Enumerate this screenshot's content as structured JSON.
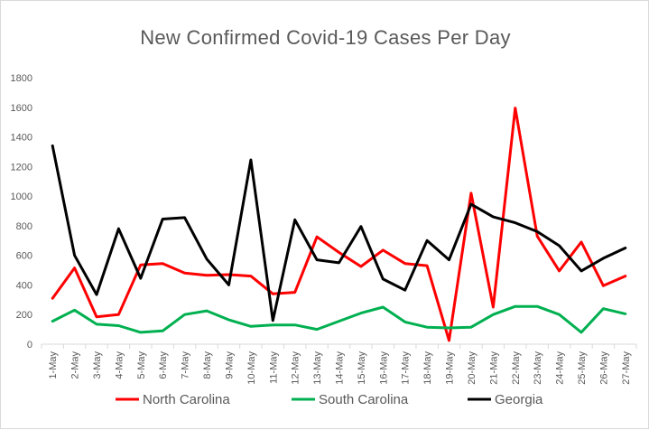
{
  "chart_data": {
    "type": "line",
    "title": "New Confirmed Covid-19 Cases Per Day",
    "xlabel": "",
    "ylabel": "",
    "ylim": [
      0,
      1800
    ],
    "yticks": [
      0,
      200,
      400,
      600,
      800,
      1000,
      1200,
      1400,
      1600,
      1800
    ],
    "grid": false,
    "legend_position": "bottom",
    "categories": [
      "1-May",
      "2-May",
      "3-May",
      "4-May",
      "5-May",
      "6-May",
      "7-May",
      "8-May",
      "9-May",
      "10-May",
      "11-May",
      "12-May",
      "13-May",
      "14-May",
      "15-May",
      "16-May",
      "17-May",
      "18-May",
      "19-May",
      "20-May",
      "21-May",
      "22-May",
      "23-May",
      "24-May",
      "25-May",
      "26-May",
      "27-May"
    ],
    "series": [
      {
        "name": "North Carolina",
        "color": "#ff0000",
        "values": [
          310,
          515,
          185,
          200,
          535,
          545,
          480,
          465,
          470,
          460,
          340,
          350,
          725,
          620,
          525,
          635,
          545,
          530,
          25,
          1020,
          250,
          1595,
          730,
          495,
          690,
          395,
          460
        ]
      },
      {
        "name": "South Carolina",
        "color": "#00b050",
        "values": [
          155,
          230,
          135,
          125,
          80,
          90,
          200,
          225,
          165,
          120,
          130,
          130,
          100,
          155,
          210,
          250,
          150,
          115,
          110,
          115,
          200,
          255,
          255,
          200,
          80,
          240,
          205
        ]
      },
      {
        "name": "Georgia",
        "color": "#000000",
        "values": [
          1340,
          600,
          335,
          780,
          445,
          845,
          855,
          575,
          400,
          1245,
          160,
          840,
          570,
          550,
          795,
          440,
          365,
          700,
          570,
          945,
          860,
          820,
          760,
          665,
          495,
          580,
          650
        ]
      }
    ]
  }
}
